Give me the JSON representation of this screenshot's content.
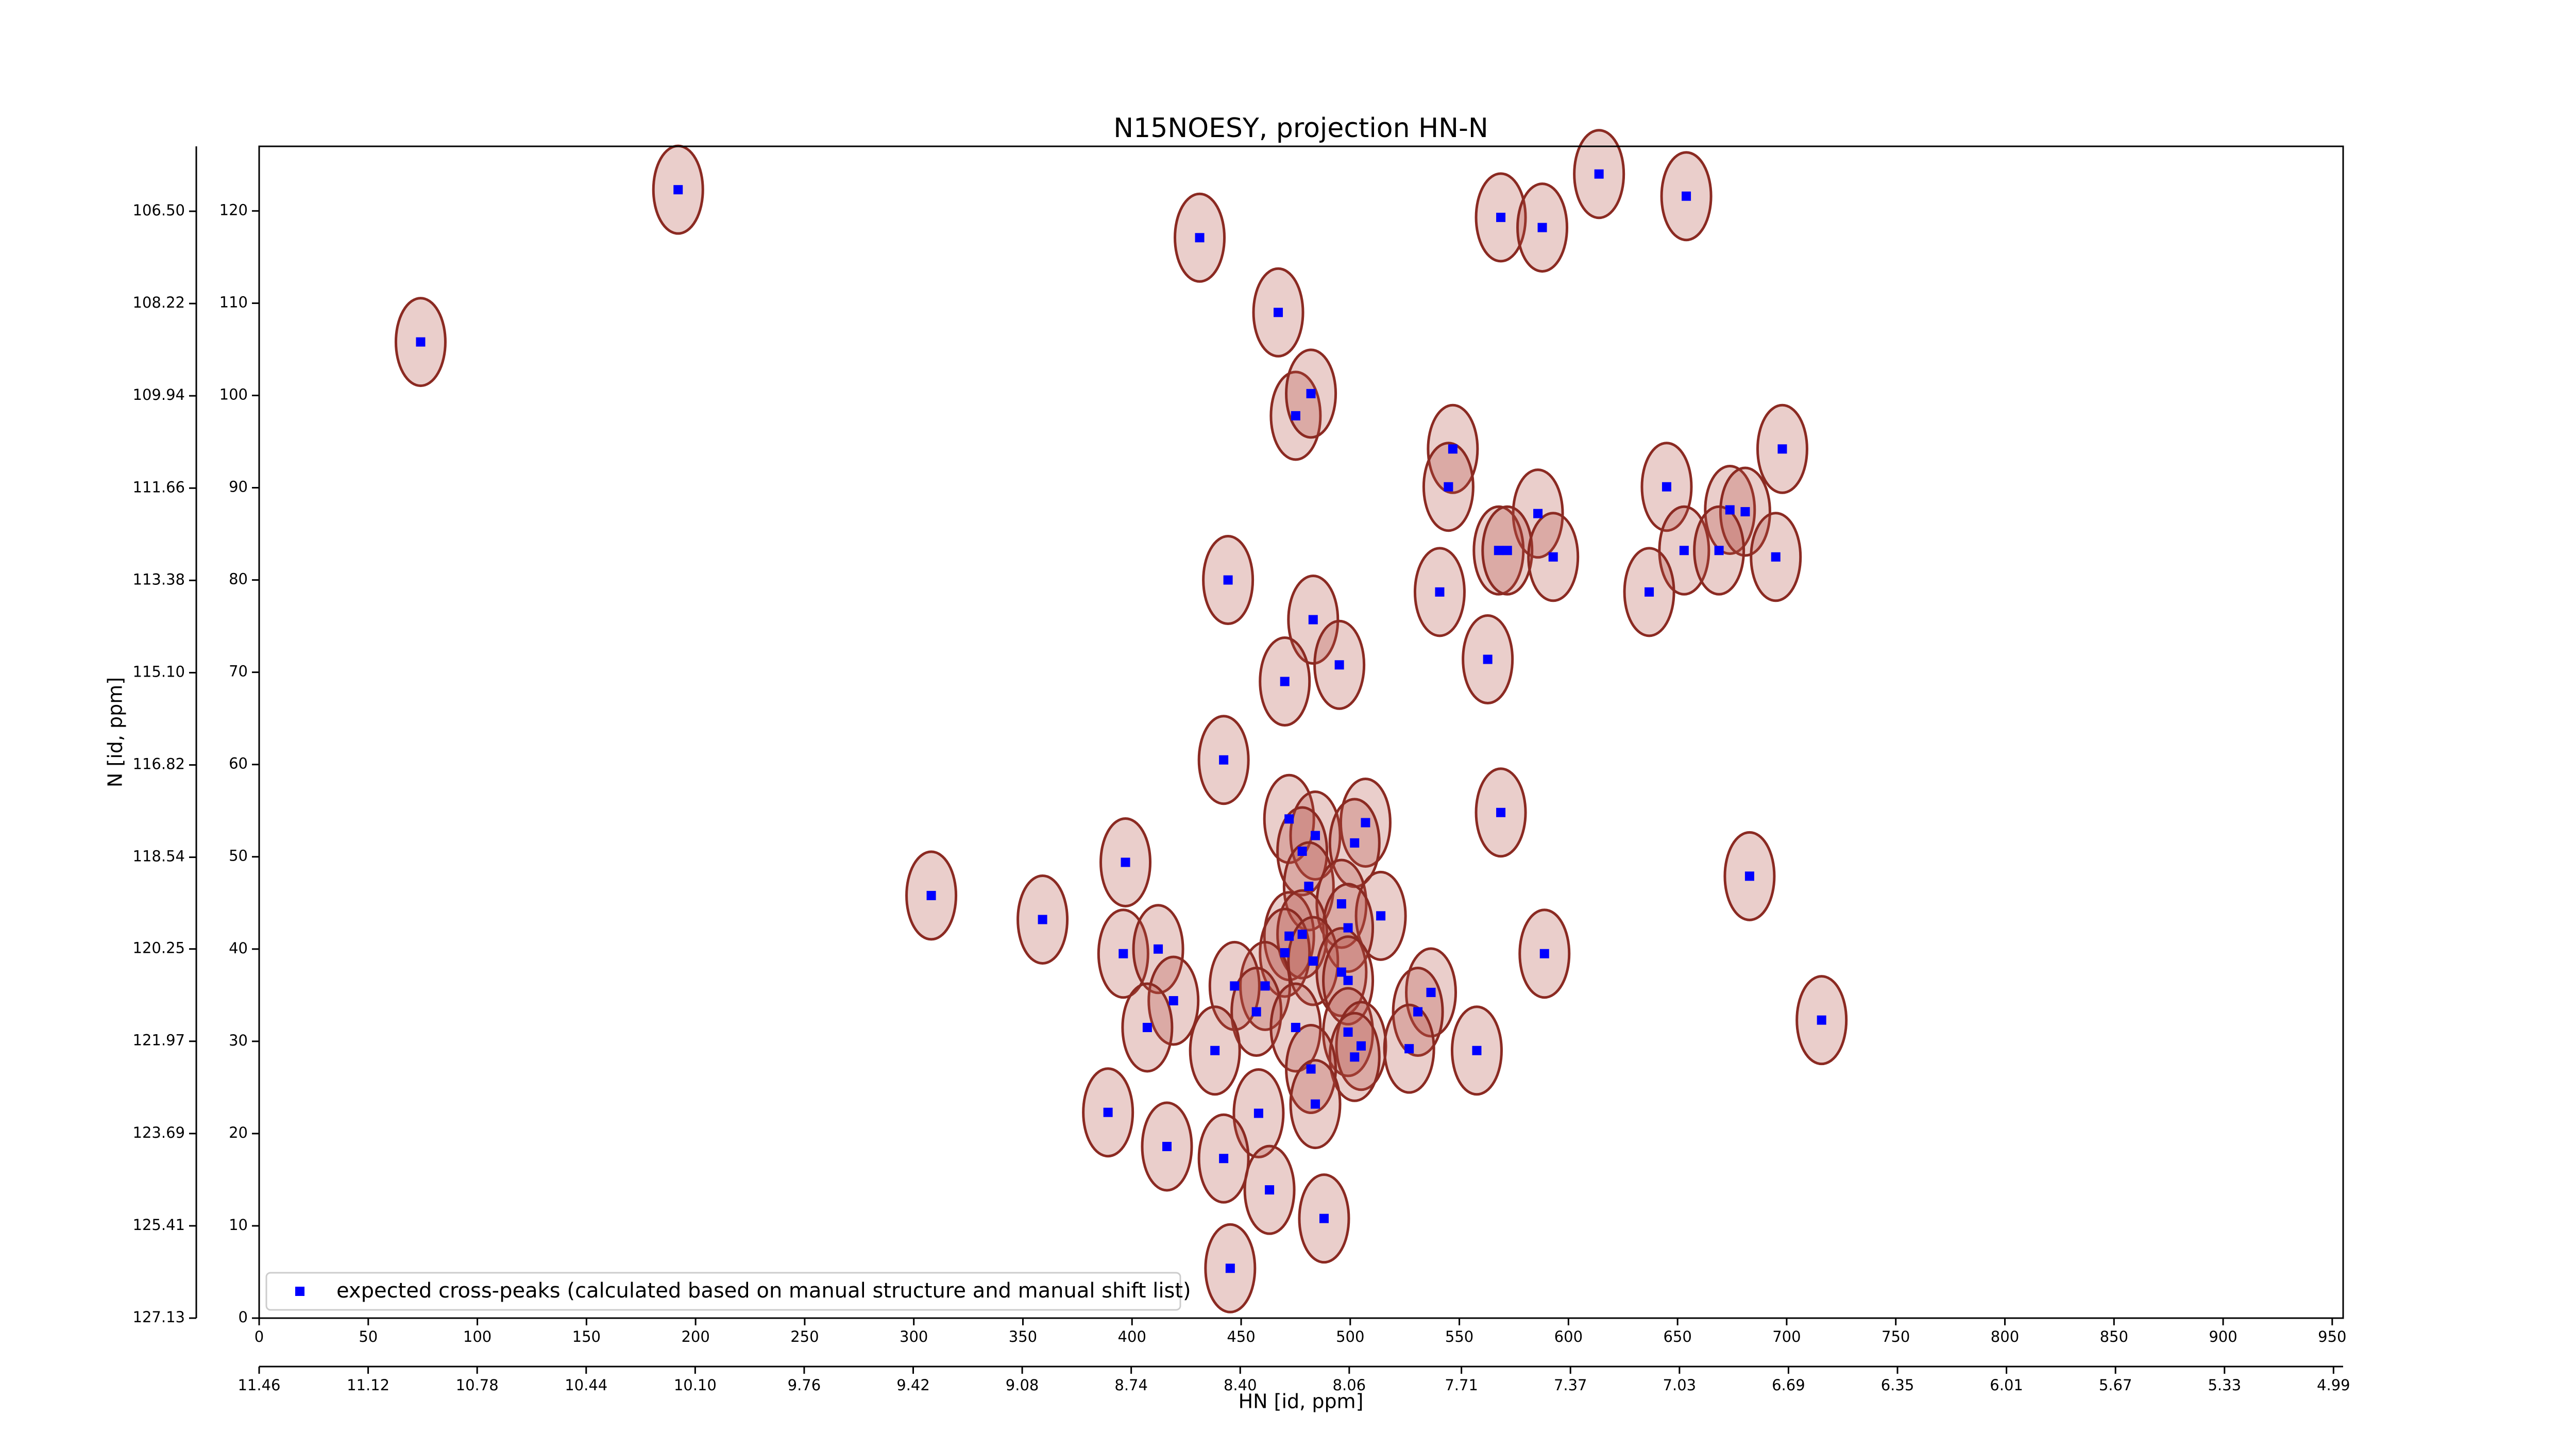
{
  "chart_data": {
    "type": "scatter",
    "title": "N15NOESY, projection HN-N",
    "xlabel": "HN [id, ppm]",
    "ylabel": "N [id, ppm]",
    "legend": "lower left",
    "xlim": [
      0,
      955
    ],
    "xticks": [
      0,
      50,
      100,
      150,
      200,
      250,
      300,
      350,
      400,
      450,
      500,
      550,
      600,
      650,
      700,
      750,
      800,
      850,
      900,
      950
    ],
    "ylim": [
      0,
      127
    ],
    "yticks": [
      0,
      10,
      20,
      30,
      40,
      50,
      60,
      70,
      80,
      90,
      100,
      110,
      120
    ],
    "x2lim": [
      11.46,
      4.96
    ],
    "x2ticks": [
      11.46,
      11.12,
      10.78,
      10.44,
      {
        "value": 10.1,
        "label": "10.10"
      },
      9.76,
      9.42,
      9.08,
      8.74,
      {
        "value": 8.4,
        "label": "8.40"
      },
      8.06,
      7.71,
      7.37,
      7.03,
      6.69,
      6.35,
      6.01,
      5.67,
      5.33,
      4.99
    ],
    "y2lim": [
      127.13,
      105.29
    ],
    "y2ticks": [
      127.13,
      125.41,
      123.69,
      121.97,
      120.25,
      118.54,
      116.82,
      {
        "value": 115.1,
        "label": "115.10"
      },
      113.38,
      111.66,
      109.94,
      108.22,
      {
        "value": 106.5,
        "label": "106.50"
      }
    ],
    "series": [
      {
        "name": "expected cross-peaks (calculated based on manual structure and manual shift list)",
        "color": "#0000ff",
        "x": [
          74,
          192,
          431,
          467,
          475,
          482,
          547,
          545,
          569,
          588,
          614,
          654,
          645,
          698,
          586,
          568,
          572,
          593,
          653,
          674,
          681,
          669,
          695,
          637,
          541,
          444,
          483,
          563,
          495,
          470,
          442,
          569,
          472,
          484,
          507,
          502,
          478,
          397,
          683,
          481,
          496,
          514,
          308,
          359,
          499,
          472,
          478,
          470,
          483,
          396,
          412,
          589,
          496,
          499,
          461,
          447,
          537,
          419,
          457,
          531,
          407,
          475,
          499,
          505,
          502,
          438,
          527,
          558,
          716,
          482,
          389,
          458,
          484,
          416,
          442,
          463,
          488,
          445
        ],
        "y": [
          105.8,
          122.3,
          117.1,
          109,
          97.8,
          100.2,
          94.2,
          90.1,
          119.3,
          118.2,
          124,
          121.6,
          90.1,
          94.2,
          87.2,
          83.2,
          83.2,
          82.5,
          83.2,
          87.6,
          87.4,
          83.2,
          82.5,
          78.7,
          78.7,
          80,
          75.7,
          71.4,
          70.8,
          69,
          60.5,
          54.8,
          54.1,
          52.3,
          53.7,
          51.5,
          50.6,
          49.4,
          47.9,
          46.8,
          44.9,
          43.6,
          45.8,
          43.2,
          42.3,
          41.4,
          41.6,
          39.6,
          38.7,
          39.5,
          40,
          39.5,
          37.5,
          36.6,
          36,
          36,
          35.3,
          34.4,
          33.2,
          33.2,
          31.5,
          31.5,
          31,
          29.5,
          28.3,
          29,
          29.2,
          29,
          32.3,
          27,
          22.3,
          22.2,
          23.2,
          18.6,
          17.3,
          13.9,
          10.8,
          5.4
        ]
      }
    ]
  }
}
